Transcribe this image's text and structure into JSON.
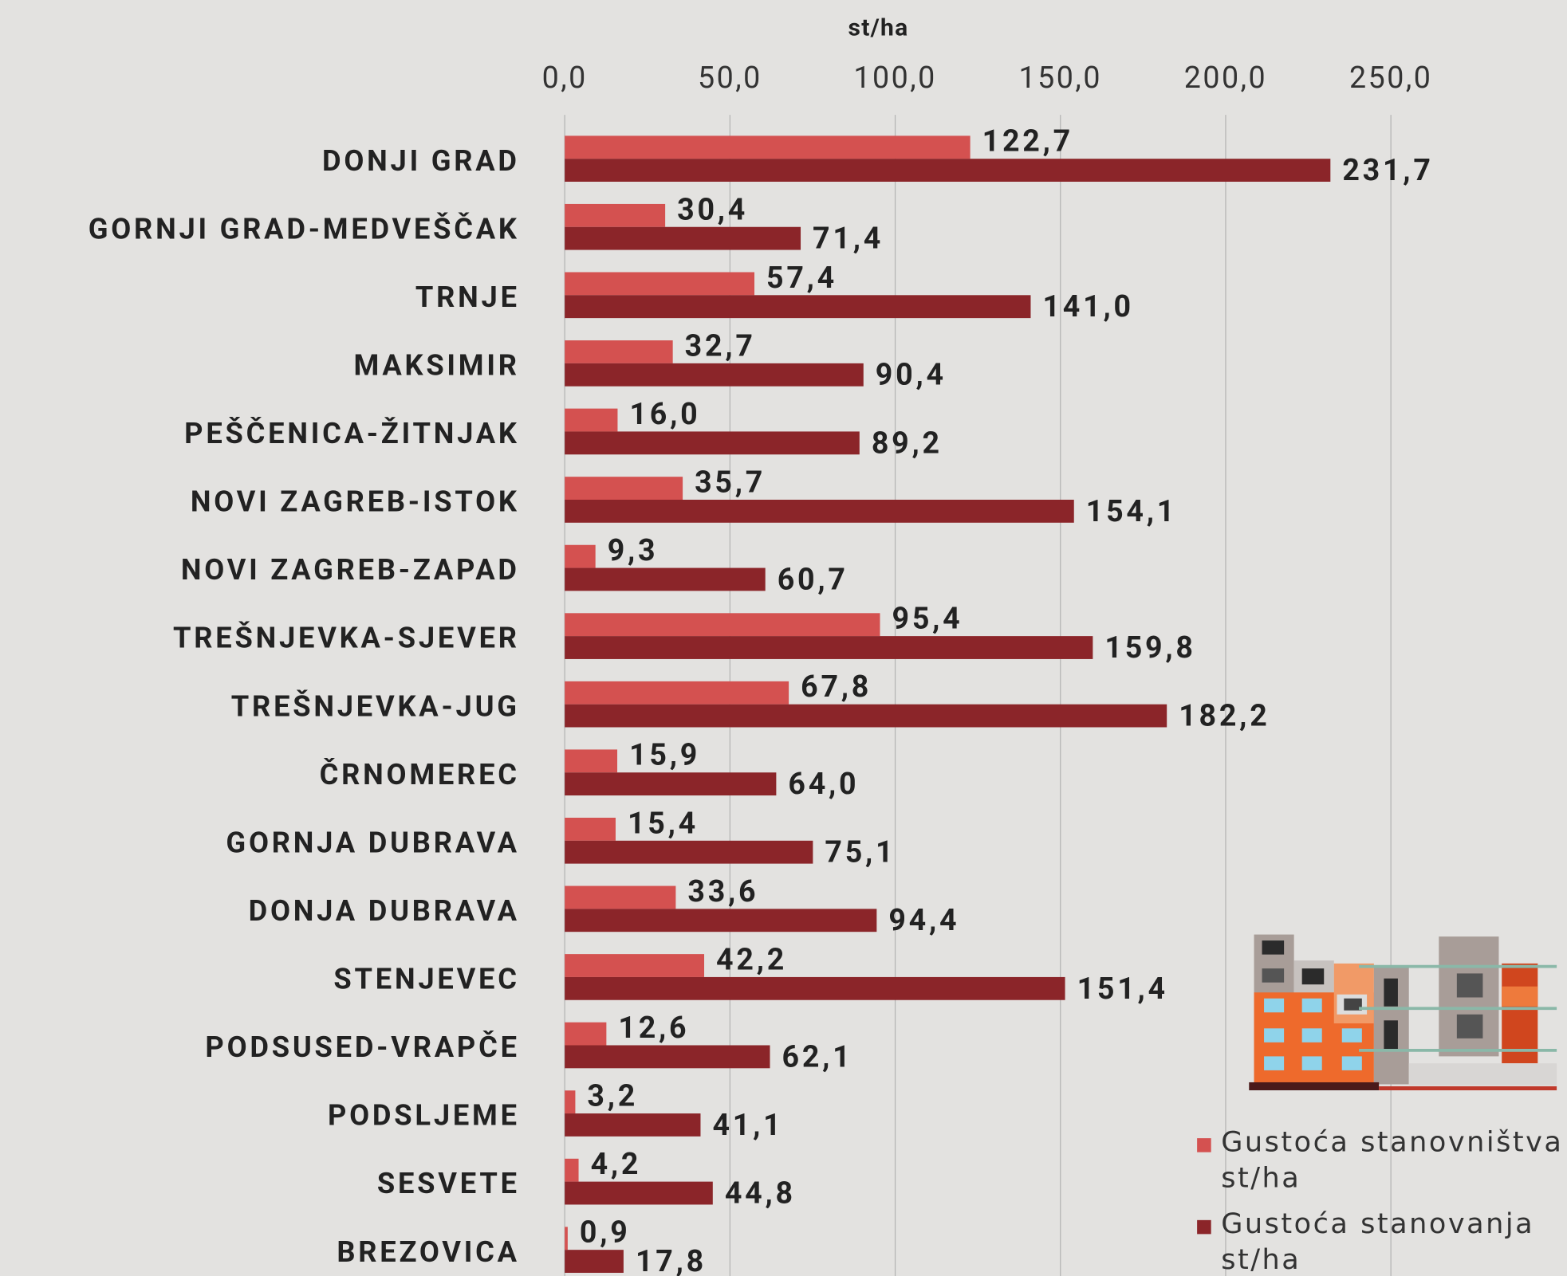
{
  "chart_data": {
    "type": "hbar",
    "xlabel": "st/ha",
    "categories": [
      "DONJI GRAD",
      "GORNJI GRAD-MEDVEŠČAK",
      "TRNJE",
      "MAKSIMIR",
      "PEŠČENICA-ŽITNJAK",
      "NOVI ZAGREB-ISTOK",
      "NOVI ZAGREB-ZAPAD",
      "TREŠNJEVKA-SJEVER",
      "TREŠNJEVKA-JUG",
      "ČRNOMEREC",
      "GORNJA DUBRAVA",
      "DONJA DUBRAVA",
      "STENJEVEC",
      "PODSUSED-VRAPČE",
      "PODSLJEME",
      "SESVETE",
      "BREZOVICA"
    ],
    "series": [
      {
        "name": "Gustoća stanovništva st/ha",
        "color": "#d45150",
        "values": [
          122.7,
          30.4,
          57.4,
          32.7,
          16.0,
          35.7,
          9.3,
          95.4,
          67.8,
          15.9,
          15.4,
          33.6,
          42.2,
          12.6,
          3.2,
          4.2,
          0.9
        ],
        "value_labels": [
          "122,7",
          "30,4",
          "57,4",
          "32,7",
          "16,0",
          "35,7",
          "9,3",
          "95,4",
          "67,8",
          "15,9",
          "15,4",
          "33,6",
          "42,2",
          "12,6",
          "3,2",
          "4,2",
          "0,9"
        ]
      },
      {
        "name": "Gustoća stanovanja st/ha",
        "color": "#8b2529",
        "values": [
          231.7,
          71.4,
          141.0,
          90.4,
          89.2,
          154.1,
          60.7,
          159.8,
          182.2,
          64.0,
          75.1,
          94.4,
          151.4,
          62.1,
          41.1,
          44.8,
          17.8
        ],
        "value_labels": [
          "231,7",
          "71,4",
          "141,0",
          "90,4",
          "89,2",
          "154,1",
          "60,7",
          "159,8",
          "182,2",
          "64,0",
          "75,1",
          "94,4",
          "151,4",
          "62,1",
          "41,1",
          "44,8",
          "17,8"
        ]
      }
    ],
    "xlim": [
      0,
      250
    ],
    "xticks": [
      {
        "value": 0,
        "label": "0,0"
      },
      {
        "value": 50,
        "label": "50,0"
      },
      {
        "value": 100,
        "label": "100,0"
      },
      {
        "value": 150,
        "label": "150,0"
      },
      {
        "value": 200,
        "label": "200,0"
      },
      {
        "value": 250,
        "label": "250,0"
      }
    ],
    "grid": true
  }
}
